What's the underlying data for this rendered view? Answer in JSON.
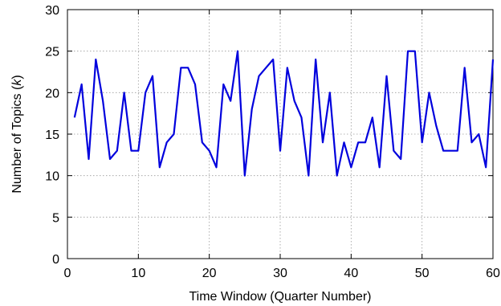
{
  "chart_data": {
    "type": "line",
    "xlabel": "Time Window (Quarter Number)",
    "ylabel_prefix": "Number of Topics (",
    "ylabel_var": "k",
    "ylabel_suffix": ")",
    "xlim": [
      0,
      60
    ],
    "ylim": [
      0,
      30
    ],
    "xticks": [
      0,
      10,
      20,
      30,
      40,
      50,
      60
    ],
    "yticks": [
      0,
      5,
      10,
      15,
      20,
      25,
      30
    ],
    "grid": true,
    "legend": "none",
    "line_color": "#0000dd",
    "x": [
      1,
      2,
      3,
      4,
      5,
      6,
      7,
      8,
      9,
      10,
      11,
      12,
      13,
      14,
      15,
      16,
      17,
      18,
      19,
      20,
      21,
      22,
      23,
      24,
      25,
      26,
      27,
      28,
      29,
      30,
      31,
      32,
      33,
      34,
      35,
      36,
      37,
      38,
      39,
      40,
      41,
      42,
      43,
      44,
      45,
      46,
      47,
      48,
      49,
      50,
      51,
      52,
      53,
      54,
      55,
      56,
      57,
      58,
      59,
      60
    ],
    "y": [
      17,
      21,
      12,
      24,
      19,
      12,
      13,
      20,
      13,
      13,
      20,
      22,
      11,
      14,
      15,
      23,
      23,
      21,
      14,
      13,
      11,
      21,
      19,
      25,
      10,
      18,
      22,
      23,
      24,
      13,
      23,
      19,
      17,
      10,
      24,
      14,
      20,
      10,
      14,
      11,
      14,
      14,
      17,
      11,
      22,
      13,
      12,
      25,
      25,
      14,
      20,
      16,
      13,
      13,
      13,
      23,
      14,
      15,
      11,
      24
    ]
  }
}
